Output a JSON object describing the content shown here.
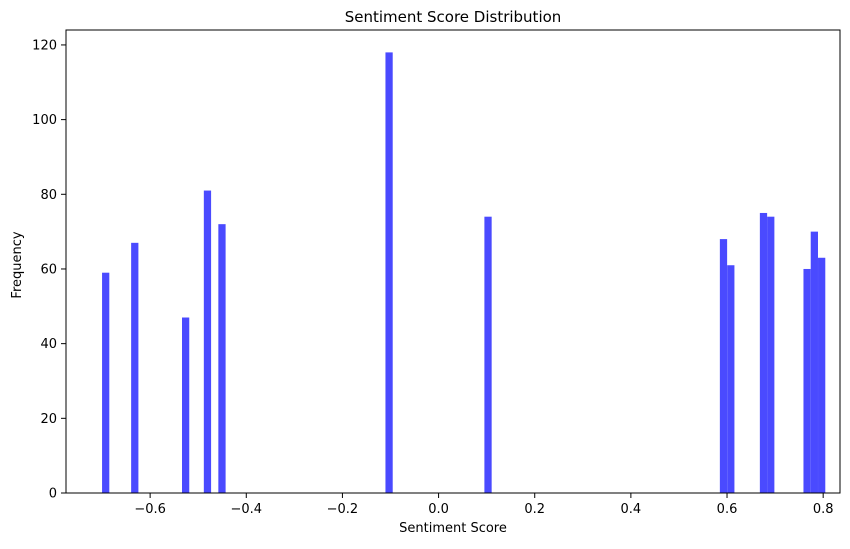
{
  "chart_data": {
    "type": "bar",
    "title": "Sentiment Score Distribution",
    "xlabel": "Sentiment Score",
    "ylabel": "Frequency",
    "xlim": [
      -0.775,
      0.835
    ],
    "ylim": [
      0,
      124
    ],
    "x_ticks": [
      -0.6,
      -0.4,
      -0.2,
      0.0,
      0.2,
      0.4,
      0.6,
      0.8
    ],
    "x_tick_labels": [
      "−0.6",
      "−0.4",
      "−0.2",
      "0.0",
      "0.2",
      "0.4",
      "0.6",
      "0.8"
    ],
    "y_ticks": [
      0,
      20,
      40,
      60,
      80,
      100,
      120
    ],
    "y_tick_labels": [
      "0",
      "20",
      "40",
      "60",
      "80",
      "100",
      "120"
    ],
    "bin_width": 0.0151,
    "bar_color": "#4a4aff",
    "grid": false,
    "legend": "none",
    "bars": [
      {
        "x_start": -0.7,
        "value": 59
      },
      {
        "x_start": -0.6395,
        "value": 67
      },
      {
        "x_start": -0.5337,
        "value": 47
      },
      {
        "x_start": -0.4883,
        "value": 81
      },
      {
        "x_start": -0.4581,
        "value": 72
      },
      {
        "x_start": -0.1105,
        "value": 118
      },
      {
        "x_start": 0.0953,
        "value": 74
      },
      {
        "x_start": 0.5851,
        "value": 68
      },
      {
        "x_start": 0.6003,
        "value": 61
      },
      {
        "x_start": 0.6683,
        "value": 75
      },
      {
        "x_start": 0.6834,
        "value": 74
      },
      {
        "x_start": 0.759,
        "value": 60
      },
      {
        "x_start": 0.7741,
        "value": 70
      },
      {
        "x_start": 0.7893,
        "value": 63
      }
    ]
  }
}
